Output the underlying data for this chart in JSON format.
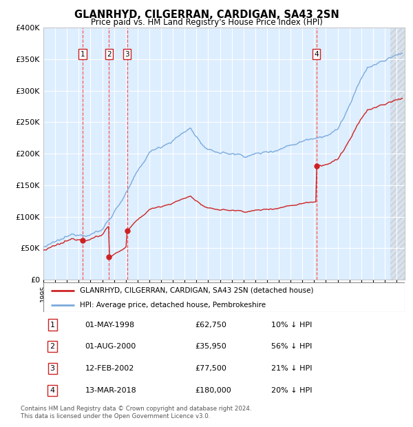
{
  "title": "GLANRHYD, CILGERRAN, CARDIGAN, SA43 2SN",
  "subtitle": "Price paid vs. HM Land Registry's House Price Index (HPI)",
  "legend_line1": "GLANRHYD, CILGERRAN, CARDIGAN, SA43 2SN (detached house)",
  "legend_line2": "HPI: Average price, detached house, Pembrokeshire",
  "footer1": "Contains HM Land Registry data © Crown copyright and database right 2024.",
  "footer2": "This data is licensed under the Open Government Licence v3.0.",
  "transactions": [
    {
      "num": 1,
      "date": "01-MAY-1998",
      "price": 62750,
      "pct": "10%",
      "dir": "↓",
      "decimal_date": 1998.33
    },
    {
      "num": 2,
      "date": "01-AUG-2000",
      "price": 35950,
      "pct": "56%",
      "dir": "↓",
      "decimal_date": 2000.58
    },
    {
      "num": 3,
      "date": "12-FEB-2002",
      "price": 77500,
      "pct": "21%",
      "dir": "↓",
      "decimal_date": 2002.12
    },
    {
      "num": 4,
      "date": "13-MAR-2018",
      "price": 180000,
      "pct": "20%",
      "dir": "↓",
      "decimal_date": 2018.2
    }
  ],
  "hpi_color": "#7aaadd",
  "price_color": "#cc2222",
  "background_color": "#ddeeff",
  "grid_color": "#ffffff",
  "vline_color": "#ff5555",
  "ylim": [
    0,
    400000
  ],
  "y_ticks": [
    0,
    50000,
    100000,
    150000,
    200000,
    250000,
    300000,
    350000,
    400000
  ],
  "xlim_start": 1995.0,
  "xlim_end": 2025.7,
  "hatch_start": 2024.5
}
